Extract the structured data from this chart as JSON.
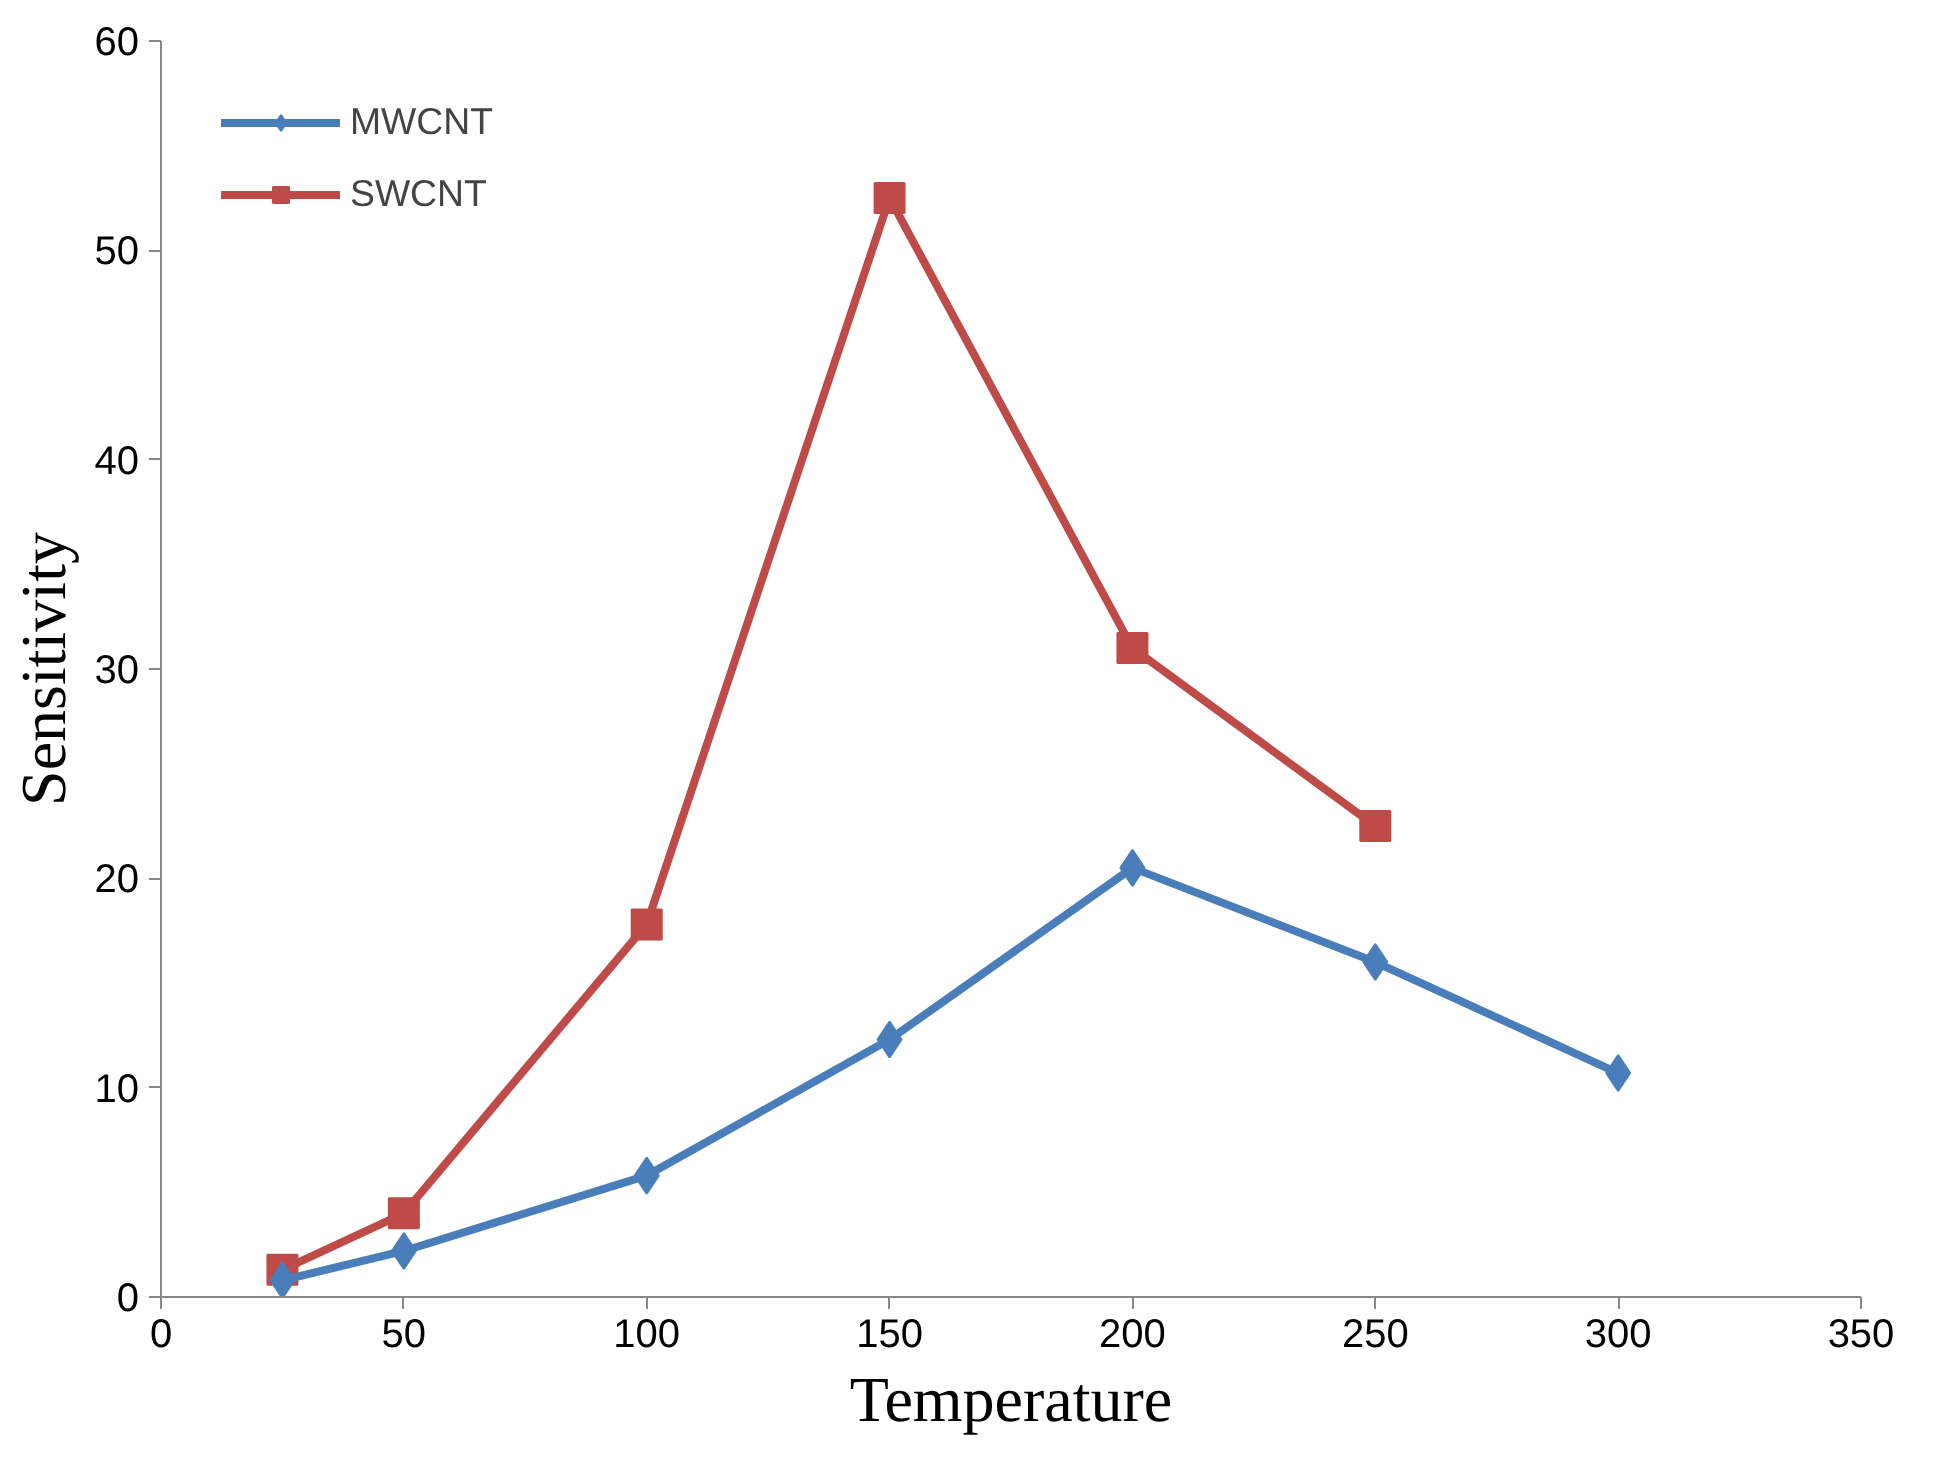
{
  "chart_data": {
    "type": "line",
    "xlabel": "Temperature",
    "ylabel": "Sensitivity",
    "xlim": [
      0,
      350
    ],
    "xticks": [
      0,
      50,
      100,
      150,
      200,
      250,
      300,
      350
    ],
    "ylim": [
      0,
      60
    ],
    "yticks": [
      0,
      10,
      20,
      30,
      40,
      50,
      60
    ],
    "grid": false,
    "legend": "top left",
    "line_style": "solid",
    "series": [
      {
        "name": "MWCNT",
        "color": "#4a7ebb",
        "marker": "diamond",
        "x": [
          25,
          50,
          100,
          150,
          200,
          250,
          300
        ],
        "values": [
          0.8,
          2.2,
          5.8,
          12.3,
          20.5,
          16.0,
          10.7
        ]
      },
      {
        "name": "SWCNT",
        "color": "#be4b48",
        "marker": "square",
        "x": [
          25,
          50,
          100,
          150,
          200,
          250
        ],
        "values": [
          1.3,
          4.0,
          17.8,
          52.5,
          31.0,
          22.5
        ]
      }
    ]
  }
}
